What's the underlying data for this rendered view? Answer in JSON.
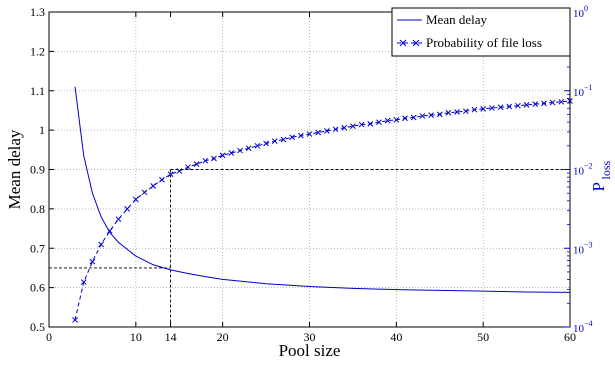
{
  "chart_data": {
    "type": "line",
    "xlabel": "Pool size",
    "ylabel_left": "Mean delay",
    "ylabel_right_main": "P",
    "ylabel_right_sub": "loss",
    "xlim": [
      0,
      60
    ],
    "ylim_left": [
      0.5,
      1.3
    ],
    "ylim_right_log10": [
      -4,
      0
    ],
    "grid": true,
    "legend_position": "top-right",
    "x_ticks": [
      {
        "label": "0",
        "value": 0
      },
      {
        "label": "10",
        "value": 10
      },
      {
        "label": "14",
        "value": 14
      },
      {
        "label": "20",
        "value": 20
      },
      {
        "label": "30",
        "value": 30
      },
      {
        "label": "40",
        "value": 40
      },
      {
        "label": "50",
        "value": 50
      },
      {
        "label": "60",
        "value": 60
      }
    ],
    "y_left_ticks": [
      {
        "label": "0.5",
        "value": 0.5
      },
      {
        "label": "0.6",
        "value": 0.6
      },
      {
        "label": "0.7",
        "value": 0.7
      },
      {
        "label": "0.8",
        "value": 0.8
      },
      {
        "label": "0.9",
        "value": 0.9
      },
      {
        "label": "1",
        "value": 1.0
      },
      {
        "label": "1.1",
        "value": 1.1
      },
      {
        "label": "1.2",
        "value": 1.2
      },
      {
        "label": "1.3",
        "value": 1.3
      }
    ],
    "y_right_ticks": [
      {
        "base": "10",
        "exp": "0",
        "value": 1
      },
      {
        "base": "10",
        "exp": "−1",
        "value": 0.1
      },
      {
        "base": "10",
        "exp": "−2",
        "value": 0.01
      },
      {
        "base": "10",
        "exp": "−3",
        "value": 0.001
      },
      {
        "base": "10",
        "exp": "−4",
        "value": 0.0001
      }
    ],
    "series": [
      {
        "name": "Mean delay",
        "axis": "left",
        "style": "solid",
        "color": "#0000cc",
        "x": [
          3,
          4,
          5,
          6,
          7,
          8,
          10,
          12,
          14,
          16,
          18,
          20,
          25,
          30,
          35,
          40,
          45,
          50,
          55,
          60
        ],
        "y": [
          1.11,
          0.935,
          0.84,
          0.78,
          0.74,
          0.715,
          0.68,
          0.658,
          0.645,
          0.636,
          0.628,
          0.621,
          0.61,
          0.603,
          0.598,
          0.595,
          0.593,
          0.591,
          0.589,
          0.588
        ]
      },
      {
        "name": "Probability of file loss",
        "axis": "right",
        "style": "dashed-x",
        "color": "#0000cc",
        "x": [
          3,
          4,
          5,
          6,
          7,
          8,
          9,
          10,
          11,
          12,
          13,
          14,
          15,
          16,
          17,
          18,
          19,
          20,
          21,
          22,
          23,
          24,
          25,
          26,
          27,
          28,
          29,
          30,
          31,
          32,
          33,
          34,
          35,
          36,
          37,
          38,
          39,
          40,
          41,
          42,
          43,
          44,
          45,
          46,
          47,
          48,
          49,
          50,
          51,
          52,
          53,
          54,
          55,
          56,
          57,
          58,
          59,
          60
        ],
        "y": [
          0.000123,
          0.000372,
          0.000676,
          0.00112,
          0.00166,
          0.00234,
          0.00316,
          0.00417,
          0.00513,
          0.00617,
          0.00741,
          0.00871,
          0.00955,
          0.0107,
          0.0117,
          0.0129,
          0.0138,
          0.0151,
          0.0162,
          0.0174,
          0.0186,
          0.02,
          0.0214,
          0.0229,
          0.024,
          0.0257,
          0.0269,
          0.0282,
          0.0295,
          0.0309,
          0.0324,
          0.0339,
          0.0355,
          0.0372,
          0.038,
          0.0398,
          0.0417,
          0.0427,
          0.0447,
          0.0457,
          0.0479,
          0.049,
          0.0501,
          0.0525,
          0.0537,
          0.055,
          0.0575,
          0.0589,
          0.0603,
          0.0617,
          0.0631,
          0.0646,
          0.0661,
          0.0676,
          0.0692,
          0.0708,
          0.0724,
          0.0741
        ]
      }
    ],
    "reference_lines": [
      {
        "x": 14,
        "y_left": 0.65,
        "p_loss": 0.01
      }
    ]
  },
  "colors": {
    "series": "#0000cc",
    "axis": "#000000",
    "grid": "#a0a0a0"
  }
}
